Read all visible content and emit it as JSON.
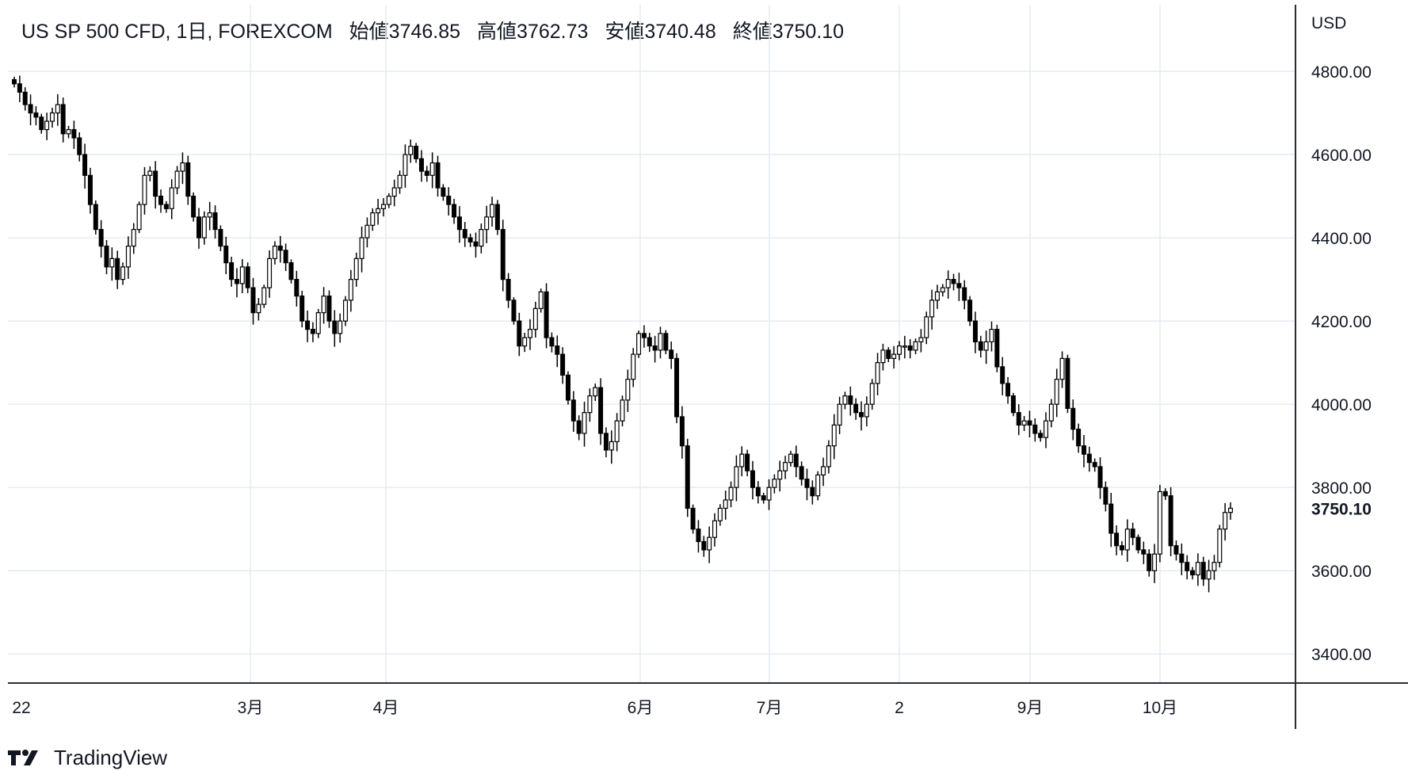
{
  "header": {
    "symbol": "US SP 500 CFD, 1日, FOREXCOM",
    "open_label": "始値",
    "open_value": "3746.85",
    "high_label": "高値",
    "high_value": "3762.73",
    "low_label": "安値",
    "low_value": "3740.48",
    "close_label": "終値",
    "close_value": "3750.10"
  },
  "brand": {
    "name": "TradingView",
    "logo_icon": "tradingview-logo-icon"
  },
  "chart_data": {
    "type": "candlestick",
    "title": "US SP 500 CFD, 1日, FOREXCOM",
    "currency": "USD",
    "ylim": [
      3330,
      4960
    ],
    "y_ticks": [
      "4800.00",
      "4600.00",
      "4400.00",
      "4200.00",
      "4000.00",
      "3800.00",
      "3600.00",
      "3400.00"
    ],
    "last_price": "3750.10",
    "x_ticks": [
      "22",
      "3月",
      "4月",
      "6月",
      "7月",
      "2",
      "9月",
      "10月"
    ],
    "grid": true,
    "series": [
      {
        "note": "daily closes, approximate, read from chart",
        "values": [
          4770,
          4750,
          4720,
          4700,
          4690,
          4660,
          4680,
          4700,
          4720,
          4650,
          4660,
          4640,
          4600,
          4550,
          4480,
          4420,
          4380,
          4330,
          4350,
          4300,
          4330,
          4380,
          4420,
          4480,
          4550,
          4560,
          4500,
          4480,
          4470,
          4520,
          4560,
          4580,
          4500,
          4450,
          4400,
          4450,
          4460,
          4420,
          4380,
          4340,
          4300,
          4290,
          4330,
          4280,
          4220,
          4240,
          4280,
          4350,
          4380,
          4370,
          4340,
          4300,
          4260,
          4200,
          4180,
          4170,
          4220,
          4260,
          4200,
          4170,
          4200,
          4250,
          4300,
          4350,
          4400,
          4430,
          4460,
          4470,
          4480,
          4500,
          4520,
          4550,
          4600,
          4620,
          4590,
          4560,
          4550,
          4580,
          4520,
          4500,
          4480,
          4450,
          4420,
          4400,
          4390,
          4380,
          4420,
          4450,
          4480,
          4420,
          4300,
          4250,
          4200,
          4140,
          4160,
          4180,
          4230,
          4270,
          4160,
          4140,
          4120,
          4070,
          4010,
          3960,
          3930,
          3980,
          4020,
          4040,
          3930,
          3890,
          3910,
          3960,
          4010,
          4060,
          4120,
          4170,
          4160,
          4140,
          4130,
          4170,
          4130,
          4110,
          3970,
          3900,
          3750,
          3700,
          3670,
          3650,
          3680,
          3720,
          3750,
          3770,
          3800,
          3850,
          3880,
          3840,
          3800,
          3780,
          3770,
          3800,
          3820,
          3840,
          3860,
          3880,
          3850,
          3820,
          3800,
          3780,
          3830,
          3850,
          3900,
          3950,
          4000,
          4020,
          4000,
          3980,
          3970,
          4000,
          4050,
          4100,
          4130,
          4110,
          4120,
          4140,
          4140,
          4130,
          4150,
          4160,
          4210,
          4250,
          4270,
          4280,
          4300,
          4290,
          4280,
          4250,
          4200,
          4150,
          4130,
          4150,
          4180,
          4090,
          4050,
          4020,
          3980,
          3950,
          3960,
          3950,
          3930,
          3920,
          3960,
          4000,
          4060,
          4110,
          3990,
          3940,
          3900,
          3880,
          3860,
          3850,
          3800,
          3760,
          3690,
          3660,
          3650,
          3700,
          3680,
          3650,
          3640,
          3600,
          3640,
          3790,
          3780,
          3660,
          3640,
          3620,
          3600,
          3590,
          3620,
          3580,
          3600,
          3620,
          3700,
          3740,
          3750
        ]
      }
    ]
  }
}
